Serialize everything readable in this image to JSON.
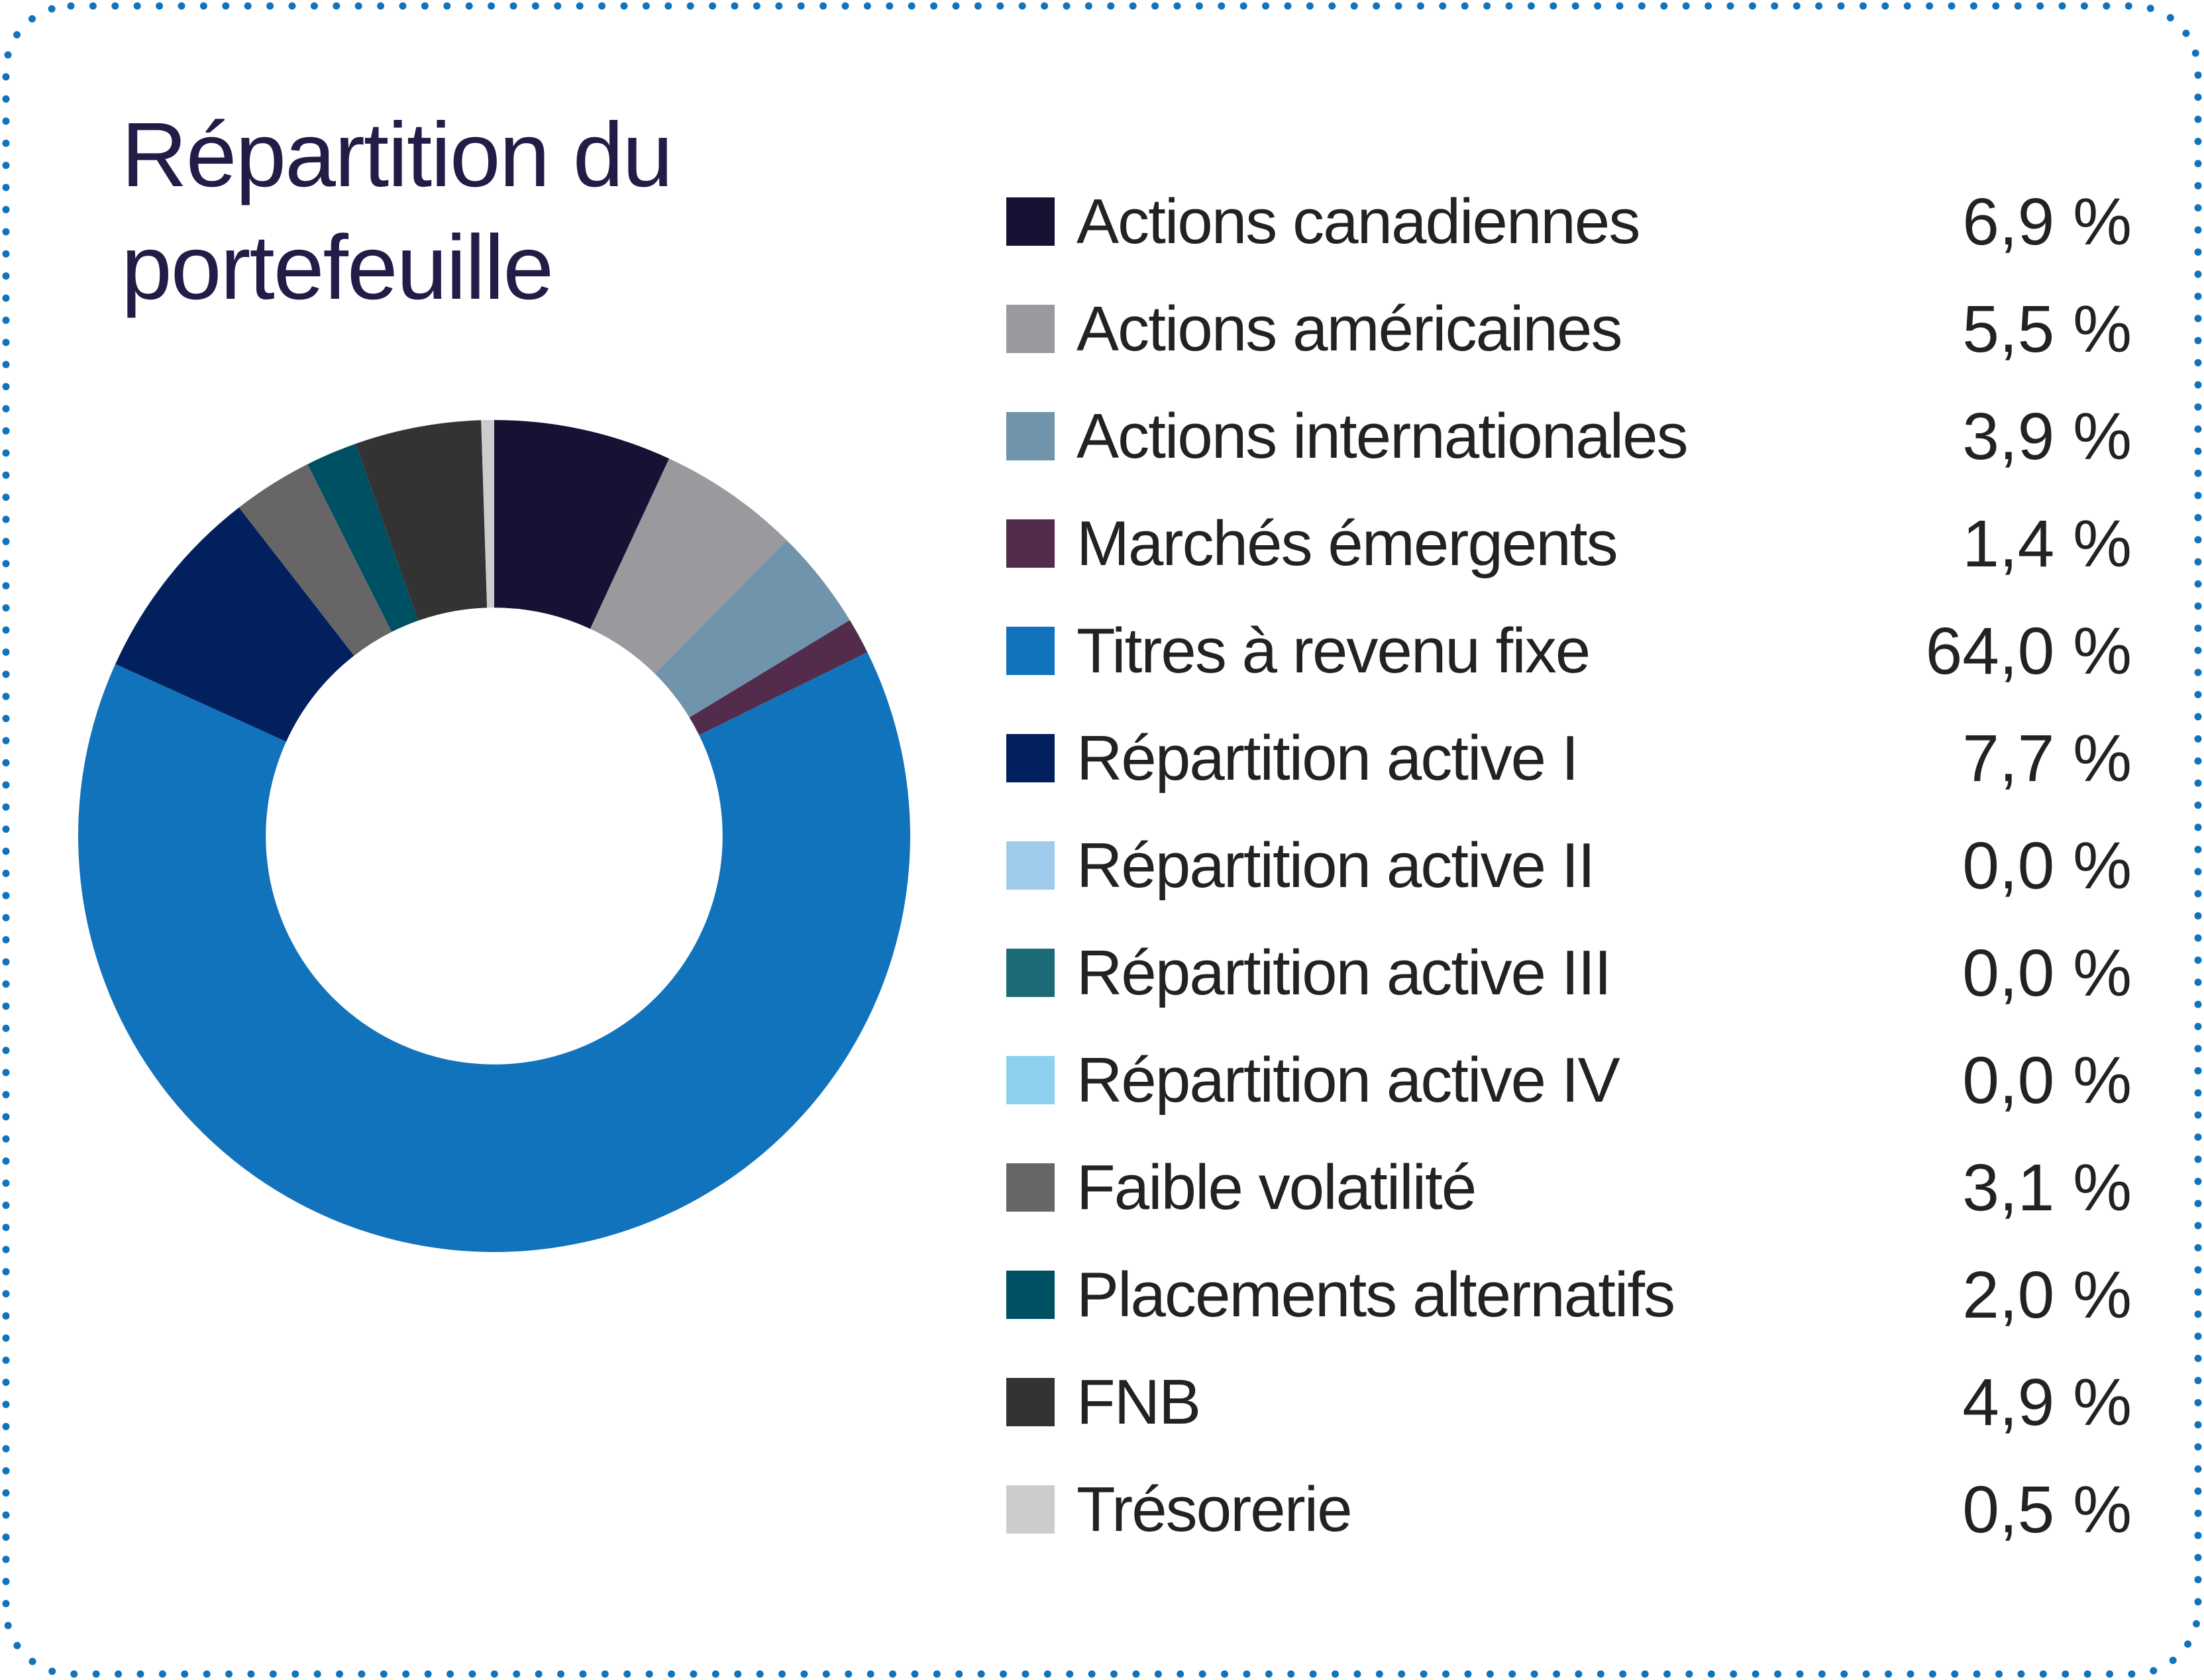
{
  "card": {
    "border_color": "#1273bd",
    "background_color": "#ffffff",
    "title_color": "#211d47",
    "text_color": "#242124"
  },
  "chart_data": {
    "type": "pie",
    "subtype": "donut",
    "title": "Répartition du portefeuille",
    "legend_position": "right",
    "start_angle_deg": 0,
    "direction": "clockwise",
    "inner_radius_ratio": 0.549,
    "series": [
      {
        "label": "Actions canadiennes",
        "value_pct": 6.9,
        "display": "6,9 %",
        "color": "#161234"
      },
      {
        "label": "Actions américaines",
        "value_pct": 5.5,
        "display": "5,5 %",
        "color": "#9a9a9e"
      },
      {
        "label": "Actions internationales",
        "value_pct": 3.9,
        "display": "3,9 %",
        "color": "#7094ac"
      },
      {
        "label": "Marchés émergents",
        "value_pct": 1.4,
        "display": "1,4 %",
        "color": "#522c4a"
      },
      {
        "label": "Titres à revenu fixe",
        "value_pct": 64.0,
        "display": "64,0 %",
        "color": "#1273bd"
      },
      {
        "label": "Répartition active I",
        "value_pct": 7.7,
        "display": "7,7 %",
        "color": "#02205e"
      },
      {
        "label": "Répartition active II",
        "value_pct": 0.0,
        "display": "0,0 %",
        "color": "#9fcbed"
      },
      {
        "label": "Répartition active III",
        "value_pct": 0.0,
        "display": "0,0 %",
        "color": "#1e6b78"
      },
      {
        "label": "Répartition active IV",
        "value_pct": 0.0,
        "display": "0,0 %",
        "color": "#8ed1ef"
      },
      {
        "label": "Faible volatilité",
        "value_pct": 3.1,
        "display": "3,1 %",
        "color": "#666666"
      },
      {
        "label": "Placements alternatifs",
        "value_pct": 2.0,
        "display": "2,0 %",
        "color": "#005064"
      },
      {
        "label": "FNB",
        "value_pct": 4.9,
        "display": "4,9 %",
        "color": "#333333"
      },
      {
        "label": "Trésorerie",
        "value_pct": 0.5,
        "display": "0,5 %",
        "color": "#cccccc"
      }
    ]
  }
}
